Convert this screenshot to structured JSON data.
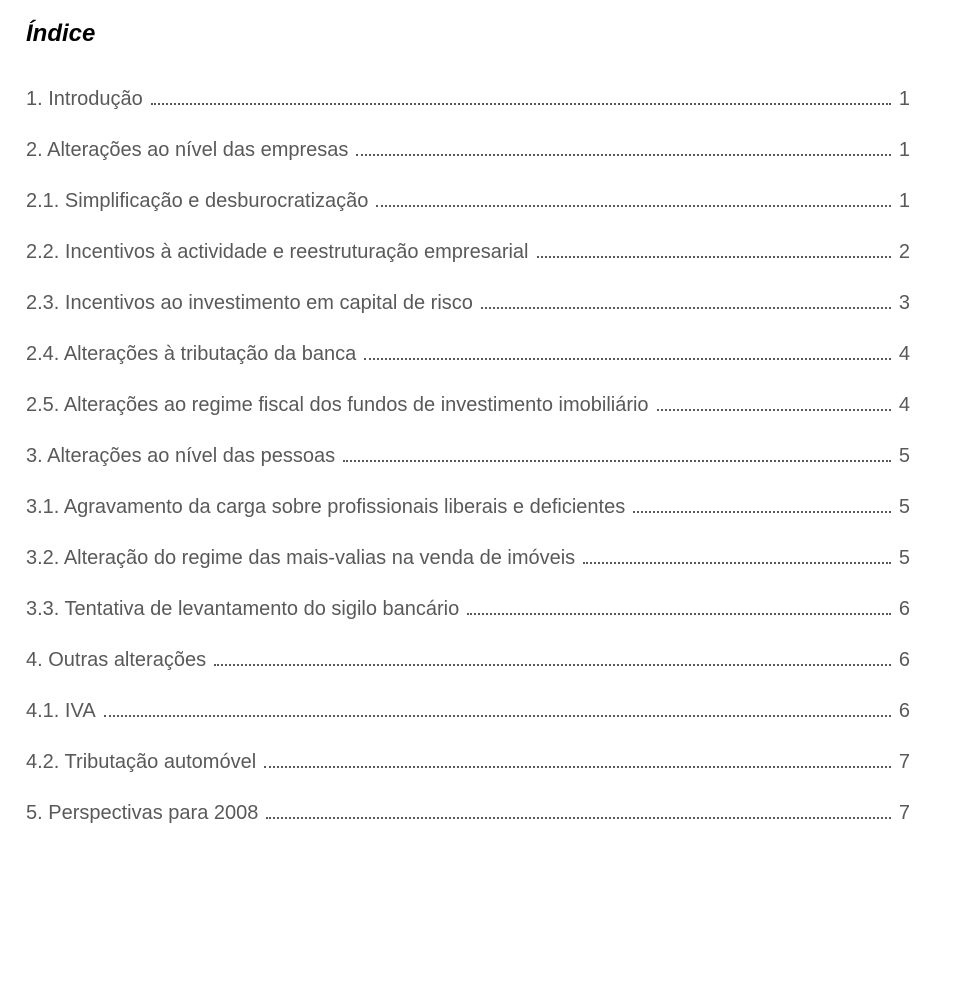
{
  "title": "Índice",
  "text_color": "#595959",
  "title_color": "#000000",
  "background_color": "#ffffff",
  "font_family": "Arial",
  "title_fontsize": 24,
  "entry_fontsize": 20,
  "entries": [
    {
      "label": "1. Introdução",
      "page": "1"
    },
    {
      "label": "2. Alterações ao nível das empresas",
      "page": "1"
    },
    {
      "label": "2.1. Simplificação e desburocratização",
      "page": "1"
    },
    {
      "label": "2.2. Incentivos à actividade e reestruturação empresarial",
      "page": "2"
    },
    {
      "label": "2.3. Incentivos ao investimento em capital de risco",
      "page": "3"
    },
    {
      "label": "2.4. Alterações à tributação da banca",
      "page": "4"
    },
    {
      "label": "2.5. Alterações ao regime fiscal dos fundos de investimento imobiliário",
      "page": "4"
    },
    {
      "label": "3. Alterações ao nível das pessoas",
      "page": "5"
    },
    {
      "label": "3.1. Agravamento da carga sobre profissionais liberais e deficientes",
      "page": "5"
    },
    {
      "label": "3.2. Alteração do regime das mais-valias na venda de imóveis",
      "page": "5"
    },
    {
      "label": "3.3. Tentativa de levantamento do sigilo bancário",
      "page": "6"
    },
    {
      "label": "4. Outras alterações",
      "page": "6"
    },
    {
      "label": "4.1. IVA",
      "page": "6"
    },
    {
      "label": "4.2. Tributação automóvel",
      "page": "7"
    },
    {
      "label": "5. Perspectivas para 2008",
      "page": "7"
    }
  ]
}
